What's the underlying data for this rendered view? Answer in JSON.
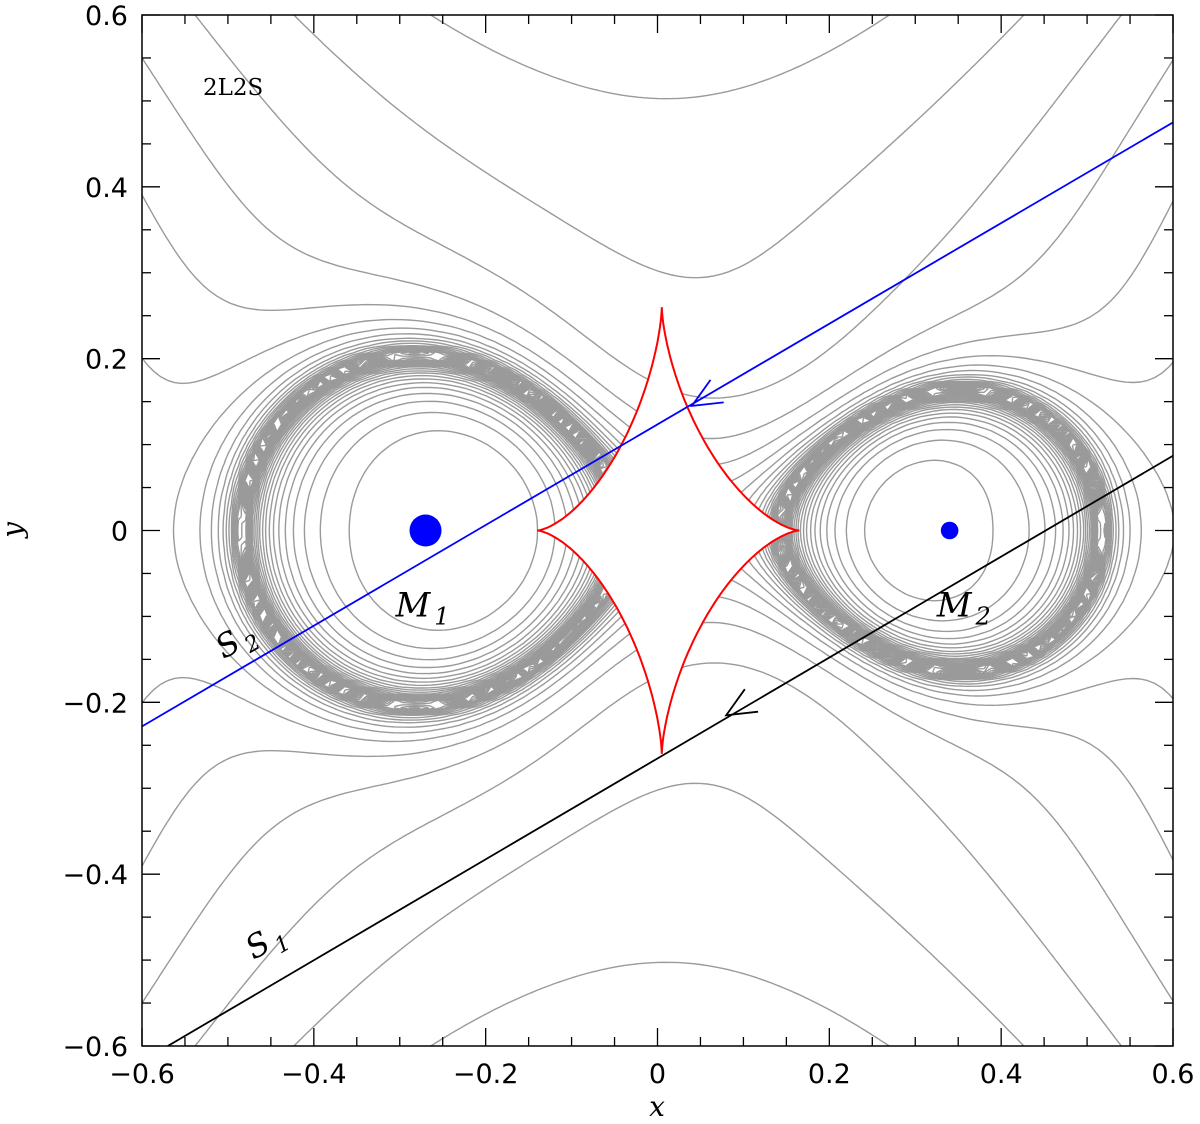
{
  "chart_data": {
    "type": "scatter",
    "title": "",
    "panel_label": "2L2S",
    "xlabel": "x",
    "ylabel": "y",
    "xlim": [
      -0.6,
      0.6
    ],
    "ylim": [
      -0.6,
      0.6
    ],
    "xticks": [
      {
        "value": -0.6,
        "label": "−0.6"
      },
      {
        "value": -0.4,
        "label": "−0.4"
      },
      {
        "value": -0.2,
        "label": "−0.2"
      },
      {
        "value": 0,
        "label": "0"
      },
      {
        "value": 0.2,
        "label": "0.2"
      },
      {
        "value": 0.4,
        "label": "0.4"
      },
      {
        "value": 0.6,
        "label": "0.6"
      }
    ],
    "yticks": [
      {
        "value": -0.6,
        "label": "−0.6"
      },
      {
        "value": -0.4,
        "label": "−0.4"
      },
      {
        "value": -0.2,
        "label": "−0.2"
      },
      {
        "value": 0,
        "label": "0"
      },
      {
        "value": 0.2,
        "label": "0.2"
      },
      {
        "value": 0.4,
        "label": "0.4"
      },
      {
        "value": 0.6,
        "label": "0.6"
      }
    ],
    "minor_tick_step": 0.05,
    "lenses": [
      {
        "label": "M",
        "subscript": "1",
        "x": -0.27,
        "y": 0.0,
        "color": "#0000ff",
        "relative_size": 1.0
      },
      {
        "label": "M",
        "subscript": "2",
        "x": 0.34,
        "y": 0.0,
        "color": "#0000ff",
        "relative_size": 0.55
      }
    ],
    "source_tracks": [
      {
        "label": "S",
        "subscript": "1",
        "color": "#000000",
        "start": [
          0.6,
          0.087
        ],
        "end": [
          -0.57,
          -0.6
        ],
        "arrow_at": [
          0.08,
          -0.215
        ]
      },
      {
        "label": "S",
        "subscript": "2",
        "color": "#0000ff",
        "start": [
          0.6,
          0.475
        ],
        "end": [
          -0.6,
          -0.228
        ],
        "arrow_at": [
          0.04,
          0.145
        ]
      }
    ],
    "caustic": {
      "color": "#ff0000",
      "shape": "astroid",
      "center": [
        0.005,
        0.0
      ],
      "cusps": [
        [
          0.165,
          0.0
        ],
        [
          -0.14,
          0.0
        ],
        [
          -0.01,
          0.26
        ],
        [
          -0.01,
          -0.26
        ]
      ]
    },
    "contours": {
      "color": "#9a9a9a",
      "description_level_count": 34
    },
    "colors": {
      "lens": "#0000ff",
      "track1": "#000000",
      "track2": "#0000ff",
      "caustic": "#ff0000",
      "contour": "#9a9a9a"
    }
  }
}
